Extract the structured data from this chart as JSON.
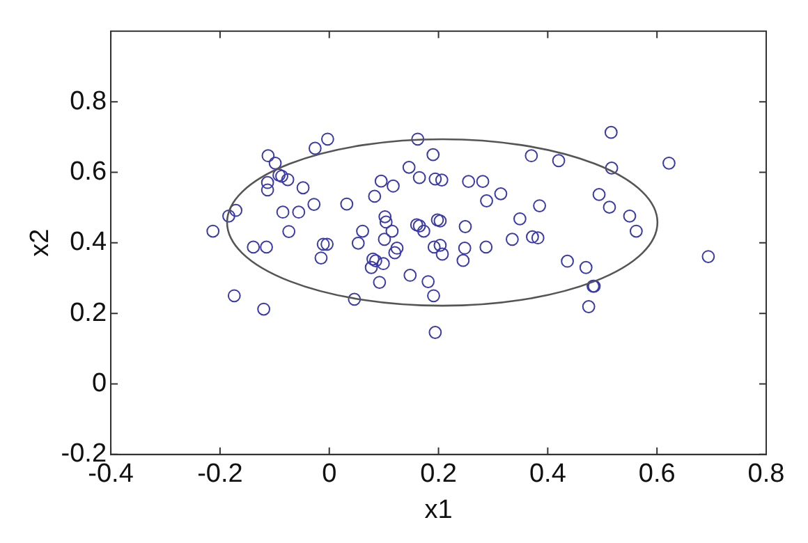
{
  "chart_data": {
    "type": "scatter",
    "xlabel": "x1",
    "ylabel": "x2",
    "xlim": [
      -0.4,
      0.8
    ],
    "xticks": [
      -0.4,
      -0.2,
      0,
      0.2,
      0.4,
      0.6,
      0.8
    ],
    "ylim": [
      -0.2,
      1.0
    ],
    "yticks": [
      -0.2,
      0,
      0.2,
      0.4,
      0.6,
      0.8
    ],
    "grid": false,
    "legend": false,
    "series": [
      {
        "marker": "circle",
        "color": "#3a3aa8",
        "x": [
          -0.213,
          -0.184,
          -0.171,
          -0.139,
          -0.115,
          -0.174,
          -0.12,
          -0.112,
          -0.113,
          -0.113,
          -0.099,
          -0.092,
          -0.087,
          -0.076,
          -0.048,
          -0.085,
          -0.056,
          -0.074,
          -0.028,
          -0.026,
          -0.003,
          -0.015,
          -0.011,
          -0.004,
          0.032,
          0.061,
          0.053,
          0.083,
          0.095,
          0.117,
          0.102,
          0.104,
          0.101,
          0.115,
          0.124,
          0.12,
          0.08,
          0.085,
          0.077,
          0.099,
          0.092,
          0.046,
          0.148,
          0.181,
          0.191,
          0.194,
          0.146,
          0.165,
          0.162,
          0.19,
          0.194,
          0.206,
          0.16,
          0.165,
          0.173,
          0.198,
          0.203,
          0.192,
          0.203,
          0.207,
          0.245,
          0.248,
          0.249,
          0.255,
          0.281,
          0.288,
          0.314,
          0.287,
          0.335,
          0.349,
          0.37,
          0.372,
          0.382,
          0.385,
          0.42,
          0.436,
          0.47,
          0.475,
          0.483,
          0.485,
          0.494,
          0.513,
          0.517,
          0.516,
          0.55,
          0.562,
          0.622,
          0.694
        ],
        "values": [
          0.433,
          0.476,
          0.492,
          0.388,
          0.388,
          0.25,
          0.212,
          0.647,
          0.571,
          0.55,
          0.626,
          0.592,
          0.589,
          0.579,
          0.556,
          0.487,
          0.487,
          0.432,
          0.509,
          0.668,
          0.694,
          0.357,
          0.396,
          0.396,
          0.51,
          0.433,
          0.399,
          0.532,
          0.575,
          0.561,
          0.474,
          0.459,
          0.41,
          0.433,
          0.385,
          0.372,
          0.354,
          0.349,
          0.33,
          0.341,
          0.288,
          0.24,
          0.308,
          0.29,
          0.25,
          0.146,
          0.614,
          0.585,
          0.694,
          0.65,
          0.581,
          0.578,
          0.451,
          0.448,
          0.433,
          0.465,
          0.462,
          0.388,
          0.393,
          0.368,
          0.35,
          0.385,
          0.446,
          0.574,
          0.574,
          0.519,
          0.539,
          0.388,
          0.41,
          0.468,
          0.647,
          0.417,
          0.414,
          0.505,
          0.633,
          0.348,
          0.33,
          0.219,
          0.277,
          0.277,
          0.537,
          0.501,
          0.612,
          0.713,
          0.476,
          0.433,
          0.626,
          0.361
        ]
      }
    ]
  }
}
